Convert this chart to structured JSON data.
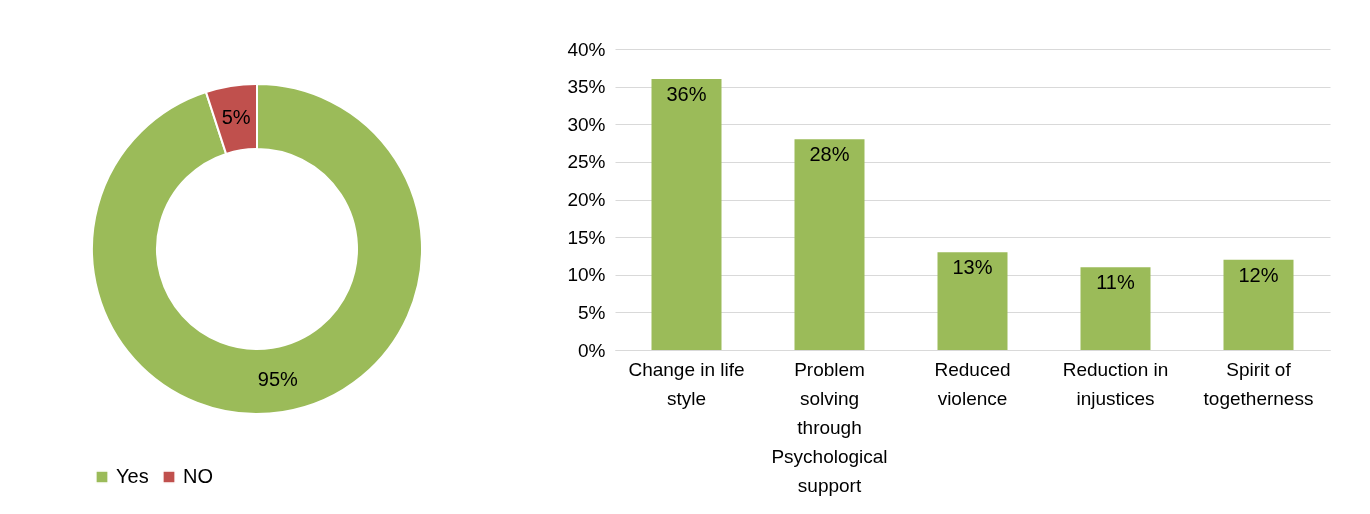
{
  "chart_data": [
    {
      "type": "donut",
      "categories": [
        "Yes",
        "NO"
      ],
      "values": [
        95,
        5
      ],
      "colors": [
        "#9bbb59",
        "#c0504d"
      ],
      "value_labels": [
        "95%",
        "5%"
      ],
      "legend": "bottom"
    },
    {
      "type": "bar",
      "categories": [
        "Change in life style",
        "Problem solving through Psychological support",
        "Reduced violence",
        "Reduction in injustices",
        "Spirit of togetherness"
      ],
      "values": [
        36,
        28,
        13,
        11,
        12
      ],
      "color": "#9bbb59",
      "value_labels": [
        "36%",
        "28%",
        "13%",
        "11%",
        "12%"
      ],
      "ylim": [
        0,
        40
      ],
      "yticks": [
        {
          "value": 0,
          "label": "0%"
        },
        {
          "value": 5,
          "label": "5%"
        },
        {
          "value": 10,
          "label": "10%"
        },
        {
          "value": 15,
          "label": "15%"
        },
        {
          "value": 20,
          "label": "20%"
        },
        {
          "value": 25,
          "label": "25%"
        },
        {
          "value": 30,
          "label": "30%"
        },
        {
          "value": 35,
          "label": "35%"
        },
        {
          "value": 40,
          "label": "40%"
        }
      ],
      "grid": "y"
    }
  ]
}
